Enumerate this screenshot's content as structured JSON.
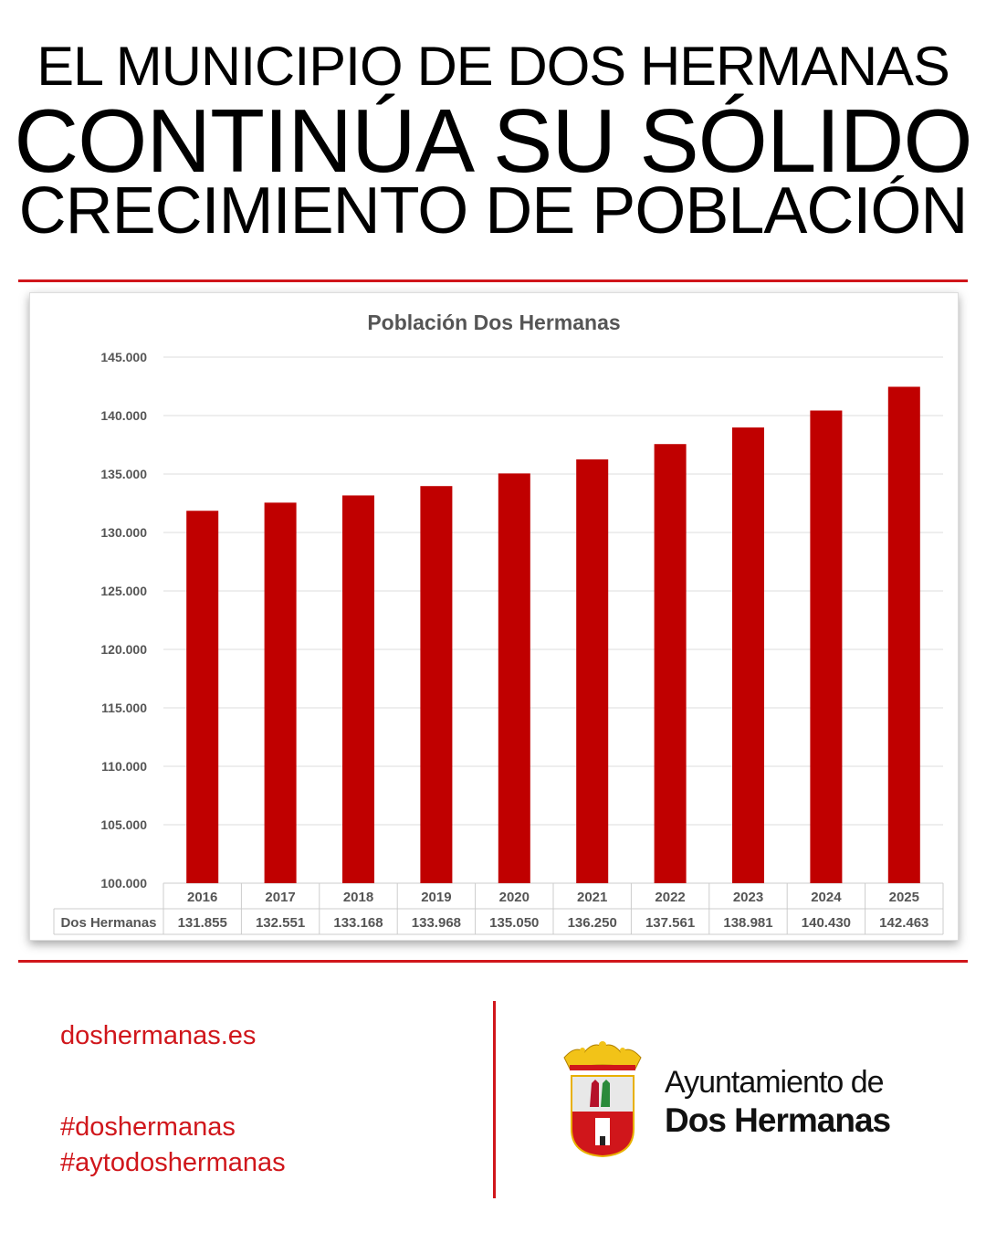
{
  "headline": {
    "line1": "EL MUNICIPIO DE DOS HERMANAS",
    "line2": "CONTINÚA SU SÓLIDO",
    "line3": "CRECIMIENTO DE POBLACIÓN"
  },
  "chart_data": {
    "type": "bar",
    "title": "Población Dos Hermanas",
    "categories": [
      "2016",
      "2017",
      "2018",
      "2019",
      "2020",
      "2021",
      "2022",
      "2023",
      "2024",
      "2025"
    ],
    "series": [
      {
        "name": "Dos Hermanas",
        "values": [
          131855,
          132551,
          133168,
          133968,
          135050,
          136250,
          137561,
          138981,
          140430,
          142463
        ],
        "labels": [
          "131.855",
          "132.551",
          "133.168",
          "133.968",
          "135.050",
          "136.250",
          "137.561",
          "138.981",
          "140.430",
          "142.463"
        ]
      }
    ],
    "ylim": [
      100000,
      145000
    ],
    "yticks": [
      "100.000",
      "105.000",
      "110.000",
      "115.000",
      "120.000",
      "125.000",
      "130.000",
      "135.000",
      "140.000",
      "145.000"
    ],
    "grid": true,
    "bar_color": "#c00000",
    "data_table": true
  },
  "footer": {
    "website": "doshermanas.es",
    "hashtag1": "#doshermanas",
    "hashtag2": "#aytodoshermanas",
    "org_line1": "Ayuntamiento de",
    "org_line2": "Dos Hermanas",
    "logo": "coat-of-arms"
  }
}
